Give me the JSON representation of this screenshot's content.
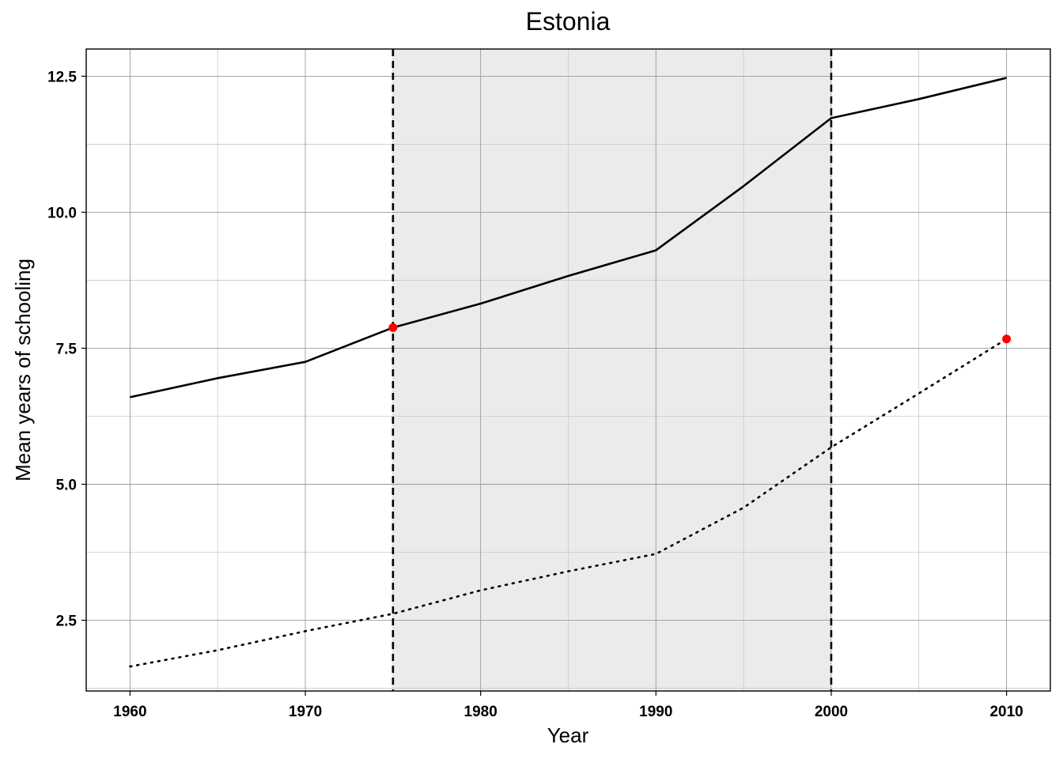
{
  "chart_data": {
    "type": "line",
    "title": "Estonia",
    "xlabel": "Year",
    "ylabel": "Mean years of schooling",
    "xlim": [
      1957.5,
      2012.5
    ],
    "ylim": [
      1.2,
      13.0
    ],
    "x_ticks": [
      1960,
      1970,
      1980,
      1990,
      2000,
      2010
    ],
    "x_tick_labels": [
      "1960",
      "1970",
      "1980",
      "1990",
      "2000",
      "2010"
    ],
    "y_ticks": [
      2.5,
      5.0,
      7.5,
      10.0,
      12.5
    ],
    "y_tick_labels": [
      "2.5",
      "5.0",
      "7.5",
      "10.0",
      "12.5"
    ],
    "grid": true,
    "legend": "none",
    "shaded_region": {
      "x_start": 1975,
      "x_end": 2000,
      "color": "#ebebeb"
    },
    "vertical_lines": [
      {
        "x": 1975,
        "style": "dashed",
        "color": "#000000"
      },
      {
        "x": 2000,
        "style": "dashed",
        "color": "#000000"
      }
    ],
    "series": [
      {
        "style": "solid",
        "color": "#000000",
        "x": [
          1960,
          1965,
          1970,
          1975,
          1980,
          1985,
          1990,
          1995,
          2000,
          2005,
          2010
        ],
        "values": [
          6.6,
          6.95,
          7.25,
          7.88,
          8.32,
          8.83,
          9.3,
          10.48,
          11.73,
          12.08,
          12.47
        ]
      },
      {
        "style": "dotted",
        "color": "#000000",
        "x": [
          1960,
          1965,
          1970,
          1975,
          1980,
          1985,
          1990,
          1995,
          2000,
          2005,
          2010
        ],
        "values": [
          1.65,
          1.95,
          2.3,
          2.62,
          3.05,
          3.4,
          3.72,
          4.57,
          5.68,
          6.67,
          7.67
        ]
      }
    ],
    "highlight_points": [
      {
        "x": 1975,
        "y": 7.88,
        "color": "#ff0000"
      },
      {
        "x": 2010,
        "y": 7.67,
        "color": "#ff0000"
      }
    ]
  }
}
